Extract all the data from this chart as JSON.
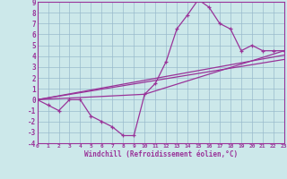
{
  "bg_color": "#cce8ea",
  "line_color": "#993399",
  "grid_color": "#99bbcc",
  "xlabel": "Windchill (Refroidissement éolien,°C)",
  "xlim": [
    0,
    23
  ],
  "ylim": [
    -4,
    9
  ],
  "xticks": [
    0,
    1,
    2,
    3,
    4,
    5,
    6,
    7,
    8,
    9,
    10,
    11,
    12,
    13,
    14,
    15,
    16,
    17,
    18,
    19,
    20,
    21,
    22,
    23
  ],
  "yticks": [
    -4,
    -3,
    -2,
    -1,
    0,
    1,
    2,
    3,
    4,
    5,
    6,
    7,
    8,
    9
  ],
  "curve_x": [
    0,
    1,
    2,
    3,
    4,
    5,
    6,
    7,
    8,
    9,
    10,
    11,
    12,
    13,
    14,
    15,
    16,
    17,
    18,
    19,
    20,
    21,
    22,
    23
  ],
  "curve_y": [
    0,
    -0.5,
    -1,
    0,
    0,
    -1.5,
    -2,
    -2.5,
    -3.3,
    -3.3,
    0.5,
    1.5,
    3.5,
    6.5,
    7.8,
    9.2,
    8.5,
    7.0,
    6.5,
    4.5,
    5.0,
    4.5,
    4.5,
    4.5
  ],
  "line1_x": [
    0,
    10,
    23
  ],
  "line1_y": [
    0,
    0.5,
    4.5
  ],
  "line2_x": [
    0,
    23
  ],
  "line2_y": [
    0,
    4.1
  ],
  "line3_x": [
    0,
    23
  ],
  "line3_y": [
    0,
    3.7
  ]
}
